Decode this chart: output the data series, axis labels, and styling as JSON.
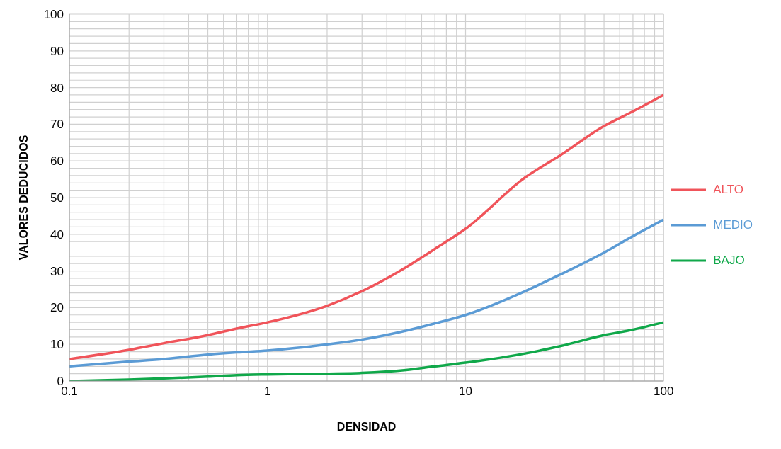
{
  "chart_data": {
    "type": "line",
    "xlabel": "DENSIDAD",
    "ylabel": "VALORES DEDUCIDOS",
    "log": "x",
    "grid": true,
    "legend": "right",
    "marker": "none",
    "line_style": "solid",
    "x": [
      0.1,
      0.2,
      0.3,
      0.5,
      0.7,
      1,
      2,
      3,
      5,
      7,
      10,
      20,
      30,
      50,
      70,
      100
    ],
    "series": [
      {
        "name": "ALTO",
        "color": "#f0545a",
        "values": [
          6,
          8.5,
          10.3,
          12.5,
          14.3,
          16,
          20.5,
          24.5,
          31,
          36,
          41.5,
          55.5,
          61.5,
          69.5,
          73.5,
          78
        ]
      },
      {
        "name": "MEDIO",
        "color": "#5b9bd5",
        "values": [
          4,
          5.3,
          6,
          7.2,
          7.8,
          8.3,
          10,
          11.3,
          13.7,
          15.7,
          18,
          24.5,
          29,
          35,
          39.5,
          44
        ]
      },
      {
        "name": "BAJO",
        "color": "#10a84a",
        "values": [
          0,
          0.4,
          0.7,
          1.2,
          1.6,
          1.8,
          2,
          2.2,
          3,
          4,
          5,
          7.5,
          9.5,
          12.5,
          14,
          16
        ]
      }
    ],
    "xlim": [
      0.1,
      100
    ],
    "xticks": [
      0.1,
      {
        "value": 0.2,
        "label": null
      },
      {
        "value": 0.3,
        "label": null
      },
      {
        "value": 0.4,
        "label": null
      },
      {
        "value": 0.5,
        "label": null
      },
      {
        "value": 0.6,
        "label": null
      },
      {
        "value": 0.7,
        "label": null
      },
      {
        "value": 0.8,
        "label": null
      },
      {
        "value": 0.9,
        "label": null
      },
      1,
      {
        "value": 2,
        "label": null
      },
      {
        "value": 3,
        "label": null
      },
      {
        "value": 4,
        "label": null
      },
      {
        "value": 5,
        "label": null
      },
      {
        "value": 6,
        "label": null
      },
      {
        "value": 7,
        "label": null
      },
      {
        "value": 8,
        "label": null
      },
      {
        "value": 9,
        "label": null
      },
      10,
      {
        "value": 20,
        "label": null
      },
      {
        "value": 30,
        "label": null
      },
      {
        "value": 40,
        "label": null
      },
      {
        "value": 50,
        "label": null
      },
      {
        "value": 60,
        "label": null
      },
      {
        "value": 70,
        "label": null
      },
      {
        "value": 80,
        "label": null
      },
      {
        "value": 90,
        "label": null
      },
      100
    ],
    "ylim": [
      0,
      100
    ],
    "yticks": [
      0,
      {
        "value": 2,
        "label": null
      },
      {
        "value": 4,
        "label": null
      },
      {
        "value": 6,
        "label": null
      },
      {
        "value": 8,
        "label": null
      },
      10,
      {
        "value": 12,
        "label": null
      },
      {
        "value": 14,
        "label": null
      },
      {
        "value": 16,
        "label": null
      },
      {
        "value": 18,
        "label": null
      },
      20,
      {
        "value": 22,
        "label": null
      },
      {
        "value": 24,
        "label": null
      },
      {
        "value": 26,
        "label": null
      },
      {
        "value": 28,
        "label": null
      },
      30,
      {
        "value": 32,
        "label": null
      },
      {
        "value": 34,
        "label": null
      },
      {
        "value": 36,
        "label": null
      },
      {
        "value": 38,
        "label": null
      },
      40,
      {
        "value": 42,
        "label": null
      },
      {
        "value": 44,
        "label": null
      },
      {
        "value": 46,
        "label": null
      },
      {
        "value": 48,
        "label": null
      },
      50,
      {
        "value": 52,
        "label": null
      },
      {
        "value": 54,
        "label": null
      },
      {
        "value": 56,
        "label": null
      },
      {
        "value": 58,
        "label": null
      },
      60,
      {
        "value": 62,
        "label": null
      },
      {
        "value": 64,
        "label": null
      },
      {
        "value": 66,
        "label": null
      },
      {
        "value": 68,
        "label": null
      },
      70,
      {
        "value": 72,
        "label": null
      },
      {
        "value": 74,
        "label": null
      },
      {
        "value": 76,
        "label": null
      },
      {
        "value": 78,
        "label": null
      },
      80,
      {
        "value": 82,
        "label": null
      },
      {
        "value": 84,
        "label": null
      },
      {
        "value": 86,
        "label": null
      },
      {
        "value": 88,
        "label": null
      },
      90,
      {
        "value": 92,
        "label": null
      },
      {
        "value": 94,
        "label": null
      },
      {
        "value": 96,
        "label": null
      },
      {
        "value": 98,
        "label": null
      },
      100
    ]
  }
}
